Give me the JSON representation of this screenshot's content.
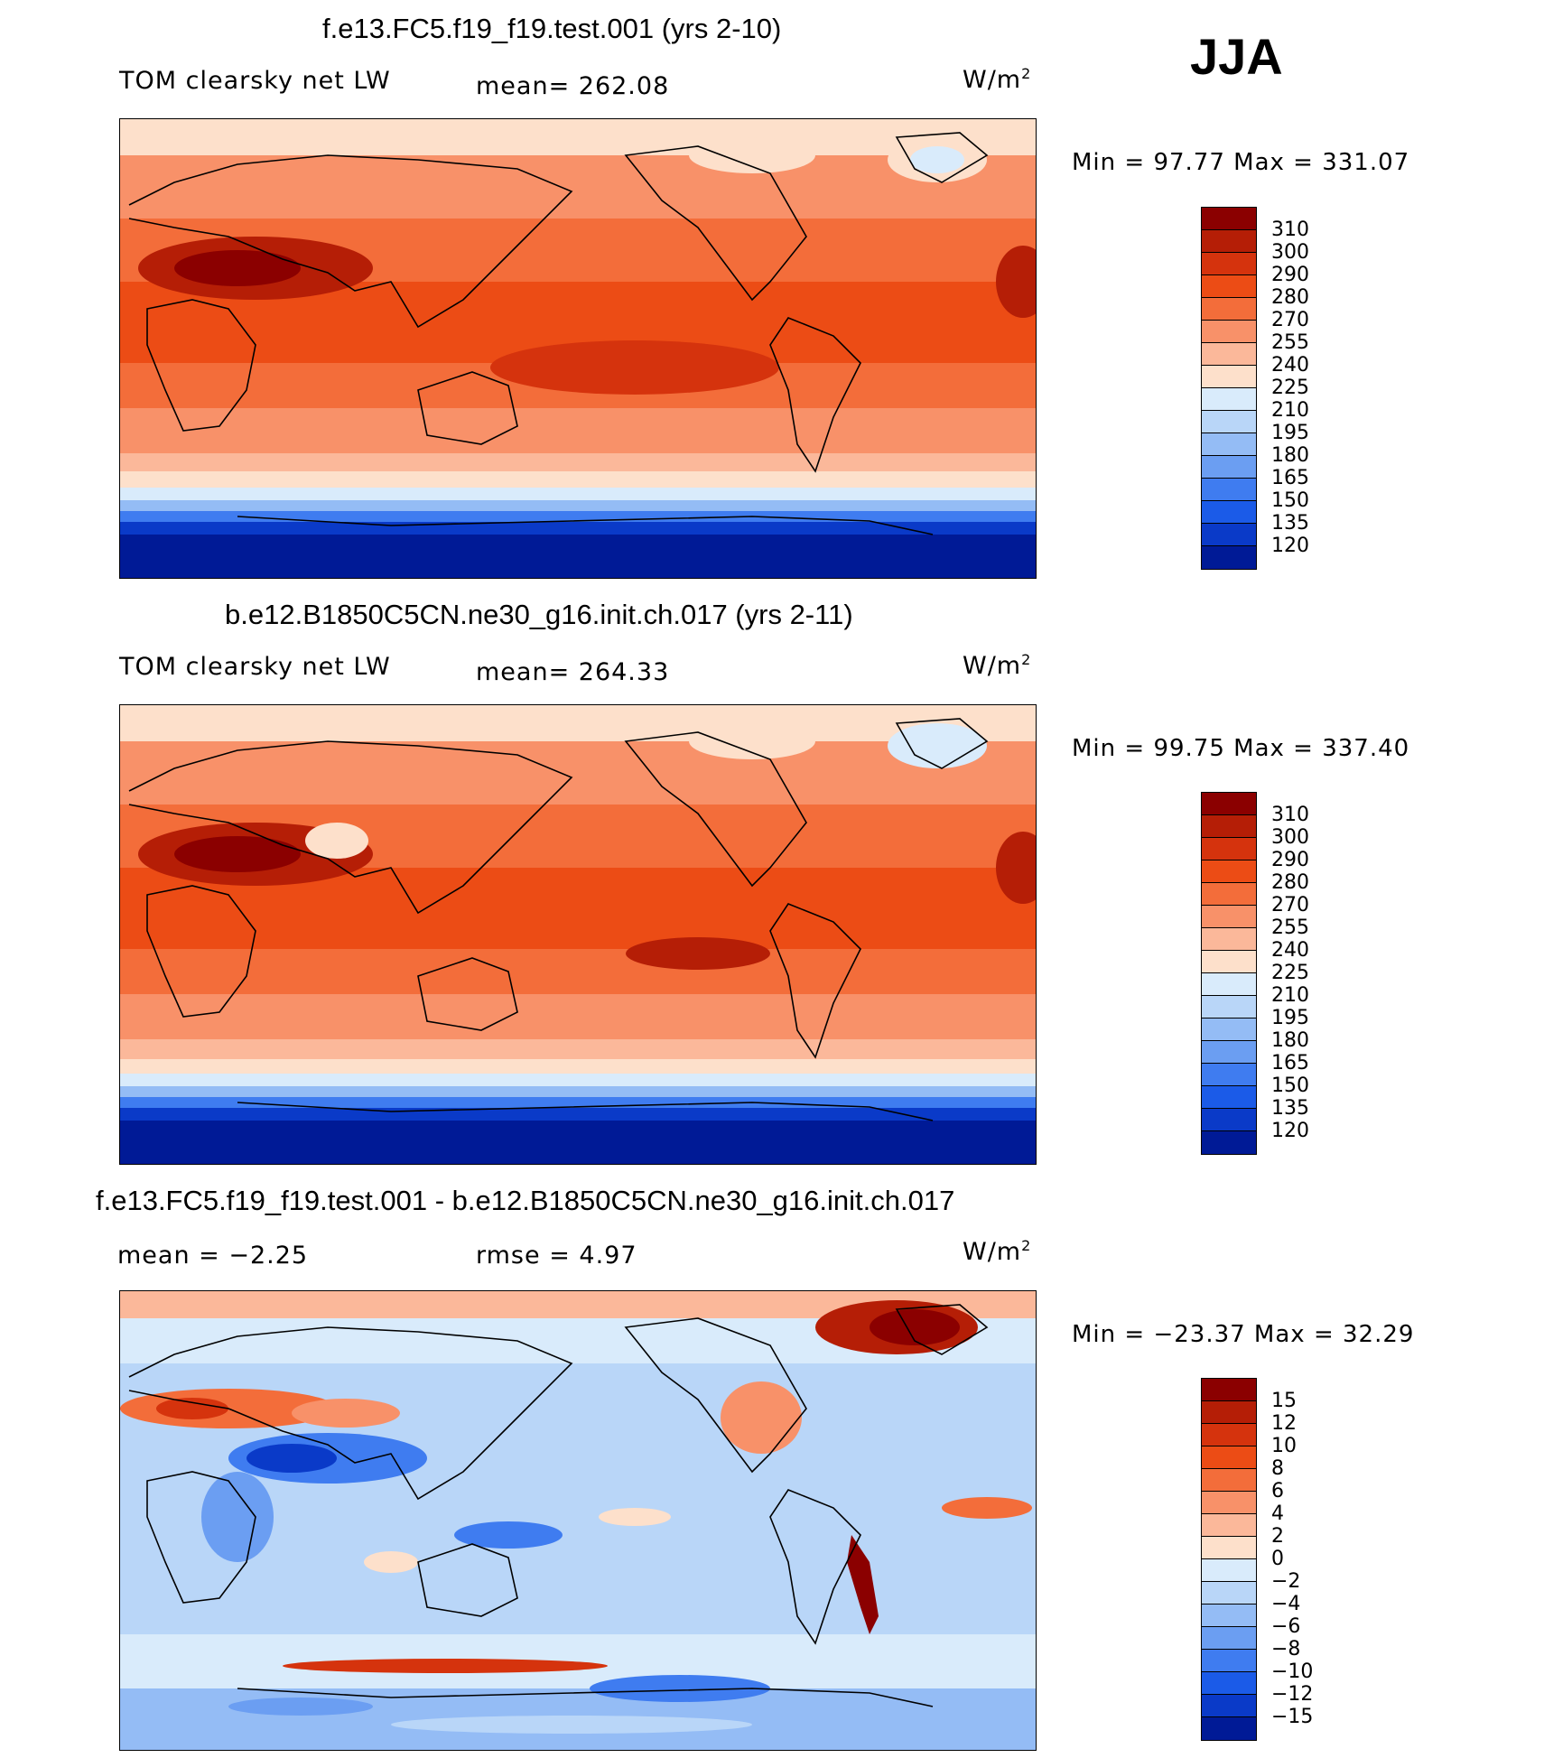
{
  "season": "JJA",
  "units_base": "W/m",
  "units_exp": "2",
  "panels": [
    {
      "title": "f.e13.FC5.f19_f19.test.001 (yrs 2-10)",
      "left_label": "TOM clearsky net LW",
      "mean_text": "mean= 262.08",
      "minmax_text": "Min =   97.77 Max = 331.07",
      "levels": [
        "310",
        "300",
        "290",
        "280",
        "270",
        "255",
        "240",
        "225",
        "210",
        "195",
        "180",
        "165",
        "150",
        "135",
        "120"
      ],
      "colors": [
        "#8b0000",
        "#b51e06",
        "#d5330d",
        "#ec4c15",
        "#f36d3a",
        "#f89169",
        "#fbb89a",
        "#fde0cb",
        "#d9ebfb",
        "#b9d6f8",
        "#94bcf5",
        "#6b9ef2",
        "#3f7cf0",
        "#1b5be8",
        "#0a3ac8",
        "#001a96"
      ]
    },
    {
      "title": "b.e12.B1850C5CN.ne30_g16.init.ch.017 (yrs 2-11)",
      "left_label": "TOM clearsky net LW",
      "mean_text": "mean= 264.33",
      "minmax_text": "Min =   99.75 Max = 337.40",
      "levels": [
        "310",
        "300",
        "290",
        "280",
        "270",
        "255",
        "240",
        "225",
        "210",
        "195",
        "180",
        "165",
        "150",
        "135",
        "120"
      ],
      "colors": [
        "#8b0000",
        "#b51e06",
        "#d5330d",
        "#ec4c15",
        "#f36d3a",
        "#f89169",
        "#fbb89a",
        "#fde0cb",
        "#d9ebfb",
        "#b9d6f8",
        "#94bcf5",
        "#6b9ef2",
        "#3f7cf0",
        "#1b5be8",
        "#0a3ac8",
        "#001a96"
      ]
    },
    {
      "title": "f.e13.FC5.f19_f19.test.001 - b.e12.B1850C5CN.ne30_g16.init.ch.017",
      "left_label": "mean =   −2.25",
      "mean_text": "rmse =    4.97",
      "minmax_text": "Min = −23.37 Max =   32.29",
      "levels": [
        "15",
        "12",
        "10",
        "8",
        "6",
        "4",
        "2",
        "0",
        "−2",
        "−4",
        "−6",
        "−8",
        "−10",
        "−12",
        "−15"
      ],
      "colors": [
        "#8b0000",
        "#b51e06",
        "#d5330d",
        "#ec4c15",
        "#f36d3a",
        "#f89169",
        "#fbb89a",
        "#fde0cb",
        "#d9ebfb",
        "#b9d6f8",
        "#94bcf5",
        "#6b9ef2",
        "#3f7cf0",
        "#1b5be8",
        "#0a3ac8",
        "#001a96"
      ]
    }
  ]
}
